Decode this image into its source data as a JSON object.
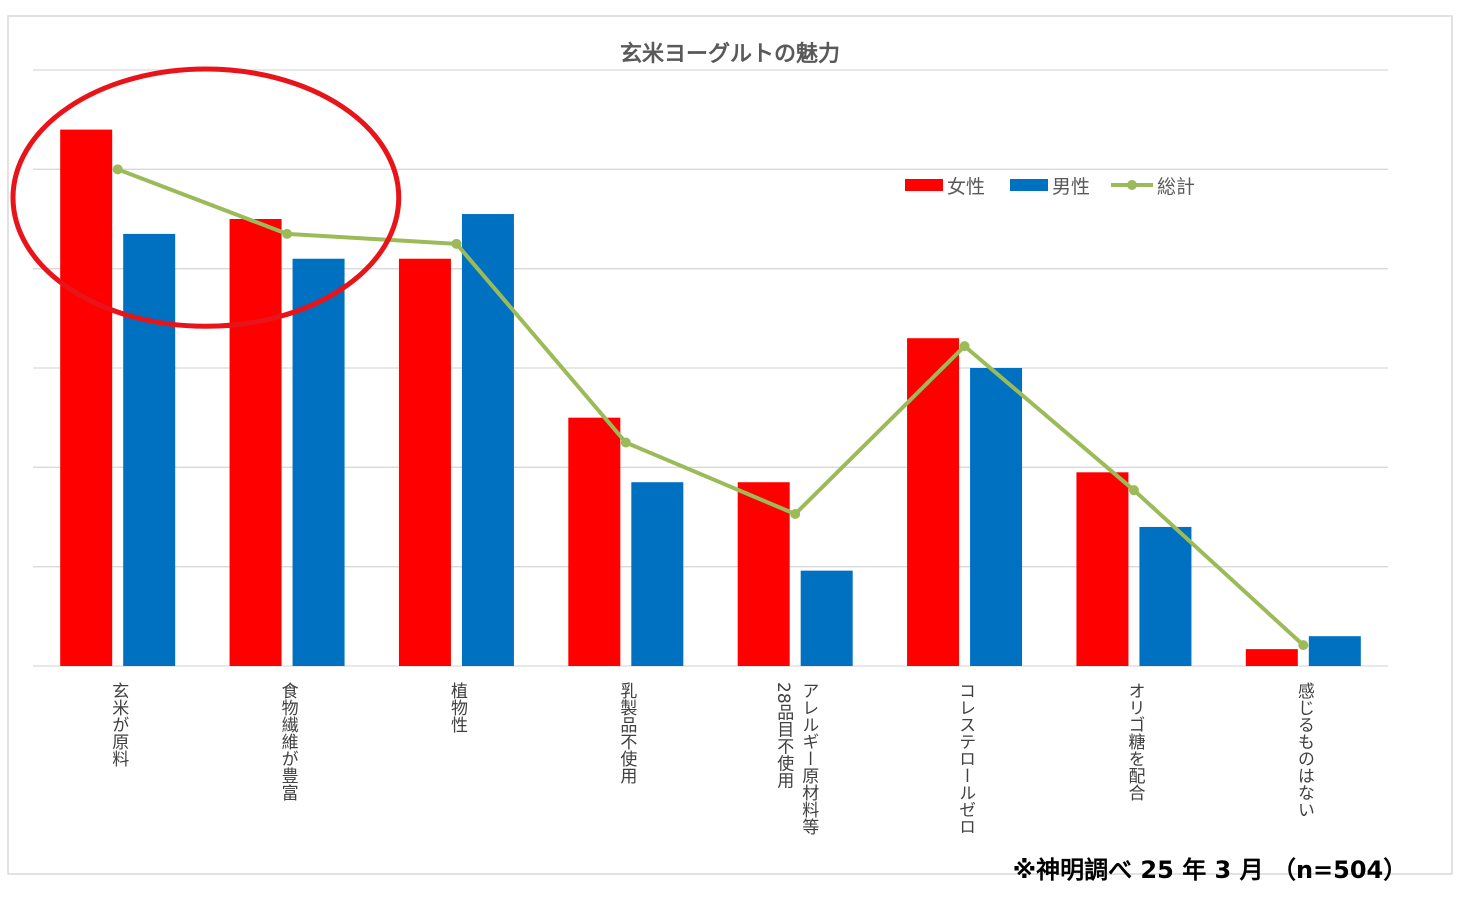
{
  "chart_data": {
    "type": "bar",
    "title": "玄米ヨーグルトの魅力",
    "categories": [
      "玄米が原料",
      "食物繊維が豊富",
      "植物性",
      "乳製品不使用",
      "アレルギー原材料等\n28品目不使用",
      "コレステロールゼロ",
      "オリゴ糖を配合",
      "感じるものはない"
    ],
    "series": [
      {
        "name": "女性",
        "kind": "bar",
        "color": "#ff0000",
        "values": [
          54,
          45,
          41,
          25,
          18.5,
          33,
          19.5,
          1.7
        ]
      },
      {
        "name": "男性",
        "kind": "bar",
        "color": "#0070c0",
        "values": [
          43.5,
          41,
          45.5,
          18.5,
          9.6,
          30,
          14,
          3
        ]
      },
      {
        "name": "総計",
        "kind": "line",
        "color": "#9bbb59",
        "values": [
          50,
          43.5,
          42.5,
          22.5,
          15.3,
          32.2,
          17.7,
          2.1
        ]
      }
    ],
    "ylim": [
      0,
      60
    ],
    "grid": true,
    "legend": "top-right",
    "annotations": [
      "※神明調べ 25 年 3 月 （n=504）"
    ],
    "highlight": {
      "shape": "ellipse",
      "color": "#e8141a",
      "categories": [
        "玄米が原料",
        "食物繊維が豊富"
      ]
    }
  }
}
